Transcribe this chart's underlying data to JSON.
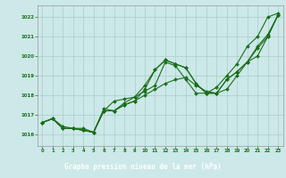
{
  "title": "Graphe pression niveau de la mer (hPa)",
  "bg_color": "#cce8e8",
  "grid_color": "#aacccc",
  "line_color": "#1a6e1a",
  "marker_color": "#1a6e1a",
  "title_bg": "#1a6e1a",
  "title_fg": "#ffffff",
  "xlim": [
    -0.5,
    23.5
  ],
  "ylim": [
    1015.4,
    1022.6
  ],
  "yticks": [
    1016,
    1017,
    1018,
    1019,
    1020,
    1021,
    1022
  ],
  "xticks": [
    0,
    1,
    2,
    3,
    4,
    5,
    6,
    7,
    8,
    9,
    10,
    11,
    12,
    13,
    14,
    15,
    16,
    17,
    18,
    19,
    20,
    21,
    22,
    23
  ],
  "series1_x": [
    0,
    1,
    2,
    3,
    4,
    5,
    6,
    7,
    8,
    9,
    10,
    11,
    12,
    13,
    14,
    15,
    16,
    17,
    18,
    19,
    20,
    21,
    22,
    23
  ],
  "series1_y": [
    1016.6,
    1016.8,
    1016.3,
    1016.3,
    1016.2,
    1016.1,
    1017.2,
    1017.2,
    1017.5,
    1017.7,
    1018.0,
    1018.3,
    1018.6,
    1018.8,
    1018.9,
    1018.5,
    1018.2,
    1018.1,
    1018.3,
    1019.0,
    1019.7,
    1020.5,
    1021.1,
    1022.1
  ],
  "series2_x": [
    0,
    1,
    2,
    3,
    4,
    5,
    6,
    7,
    8,
    9,
    10,
    11,
    12,
    13,
    14,
    15,
    16,
    17,
    18,
    19,
    20,
    21,
    22,
    23
  ],
  "series2_y": [
    1016.6,
    1016.8,
    1016.3,
    1016.3,
    1016.2,
    1016.1,
    1017.2,
    1017.2,
    1017.5,
    1017.7,
    1018.3,
    1019.3,
    1019.8,
    1019.6,
    1019.4,
    1018.6,
    1018.1,
    1018.1,
    1018.8,
    1019.2,
    1019.7,
    1020.0,
    1021.0,
    1022.1
  ],
  "series3_x": [
    0,
    1,
    2,
    3,
    4,
    5,
    6,
    7,
    8,
    9,
    10,
    11,
    12,
    13,
    14,
    15,
    16,
    17,
    18,
    19,
    20,
    21,
    22,
    23
  ],
  "series3_y": [
    1016.6,
    1016.8,
    1016.3,
    1016.3,
    1016.2,
    1016.1,
    1017.3,
    1017.2,
    1017.6,
    1017.9,
    1018.5,
    1019.3,
    1019.8,
    1019.6,
    1019.4,
    1018.6,
    1018.1,
    1018.1,
    1018.8,
    1019.2,
    1019.7,
    1020.4,
    1021.0,
    1022.1
  ],
  "series4_x": [
    0,
    1,
    2,
    3,
    4,
    5,
    6,
    7,
    8,
    9,
    10,
    11,
    12,
    13,
    14,
    15,
    16,
    17,
    18,
    19,
    20,
    21,
    22,
    23
  ],
  "series4_y": [
    1016.6,
    1016.8,
    1016.4,
    1016.3,
    1016.3,
    1016.1,
    1017.2,
    1017.7,
    1017.8,
    1017.9,
    1018.2,
    1018.5,
    1019.7,
    1019.5,
    1018.8,
    1018.1,
    1018.1,
    1018.4,
    1019.0,
    1019.6,
    1020.5,
    1021.0,
    1022.0,
    1022.2
  ]
}
